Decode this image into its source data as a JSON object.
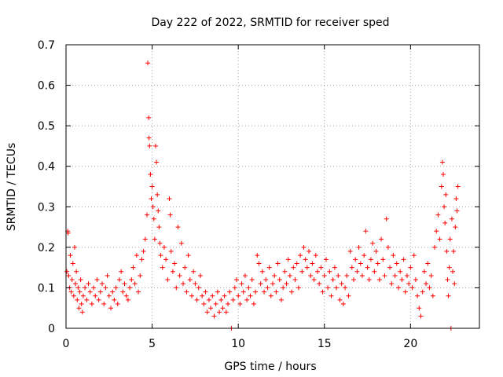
{
  "chart_data": {
    "type": "scatter",
    "title": "Day 222 of 2022, SRMTID for receiver sped",
    "xlabel": "GPS time / hours",
    "ylabel": "SRMTID / TECUs",
    "xlim": [
      0,
      24
    ],
    "ylim": [
      0,
      0.7
    ],
    "x_ticks": [
      0,
      5,
      10,
      15,
      20
    ],
    "x_tick_labels": [
      "0",
      "5",
      "10",
      "15",
      "20"
    ],
    "y_ticks": [
      0,
      0.1,
      0.2,
      0.3,
      0.4,
      0.5,
      0.6,
      0.7
    ],
    "y_tick_labels": [
      "0",
      "0.1",
      "0.2",
      "0.3",
      "0.4",
      "0.5",
      "0.6",
      "0.7"
    ],
    "grid": true,
    "marker": "+",
    "series": [
      {
        "name": "SRMTID",
        "color": "#ff0000",
        "points": [
          [
            0.05,
            0.14
          ],
          [
            0.1,
            0.24
          ],
          [
            0.12,
            0.235
          ],
          [
            0.15,
            0.13
          ],
          [
            0.2,
            0.1
          ],
          [
            0.25,
            0.18
          ],
          [
            0.3,
            0.09
          ],
          [
            0.35,
            0.12
          ],
          [
            0.4,
            0.16
          ],
          [
            0.45,
            0.08
          ],
          [
            0.5,
            0.2
          ],
          [
            0.55,
            0.11
          ],
          [
            0.6,
            0.14
          ],
          [
            0.65,
            0.07
          ],
          [
            0.7,
            0.1
          ],
          [
            0.75,
            0.05
          ],
          [
            0.8,
            0.09
          ],
          [
            0.85,
            0.12
          ],
          [
            0.9,
            0.06
          ],
          [
            0.95,
            0.04
          ],
          [
            1.0,
            0.08
          ],
          [
            1.1,
            0.1
          ],
          [
            1.2,
            0.07
          ],
          [
            1.3,
            0.11
          ],
          [
            1.4,
            0.09
          ],
          [
            1.5,
            0.06
          ],
          [
            1.6,
            0.1
          ],
          [
            1.7,
            0.08
          ],
          [
            1.8,
            0.12
          ],
          [
            1.9,
            0.07
          ],
          [
            2.0,
            0.09
          ],
          [
            2.1,
            0.11
          ],
          [
            2.2,
            0.06
          ],
          [
            2.3,
            0.1
          ],
          [
            2.4,
            0.13
          ],
          [
            2.5,
            0.08
          ],
          [
            2.6,
            0.05
          ],
          [
            2.7,
            0.09
          ],
          [
            2.8,
            0.07
          ],
          [
            2.9,
            0.1
          ],
          [
            3.0,
            0.06
          ],
          [
            3.1,
            0.12
          ],
          [
            3.2,
            0.14
          ],
          [
            3.3,
            0.09
          ],
          [
            3.4,
            0.11
          ],
          [
            3.5,
            0.08
          ],
          [
            3.6,
            0.07
          ],
          [
            3.7,
            0.1
          ],
          [
            3.8,
            0.12
          ],
          [
            3.9,
            0.15
          ],
          [
            4.0,
            0.11
          ],
          [
            4.1,
            0.18
          ],
          [
            4.2,
            0.09
          ],
          [
            4.3,
            0.13
          ],
          [
            4.4,
            0.17
          ],
          [
            4.5,
            0.19
          ],
          [
            4.6,
            0.22
          ],
          [
            4.7,
            0.28
          ],
          [
            4.75,
            0.655
          ],
          [
            4.8,
            0.52
          ],
          [
            4.82,
            0.47
          ],
          [
            4.85,
            0.45
          ],
          [
            4.9,
            0.38
          ],
          [
            4.95,
            0.32
          ],
          [
            5.0,
            0.35
          ],
          [
            5.05,
            0.3
          ],
          [
            5.1,
            0.27
          ],
          [
            5.15,
            0.22
          ],
          [
            5.2,
            0.45
          ],
          [
            5.25,
            0.41
          ],
          [
            5.3,
            0.33
          ],
          [
            5.35,
            0.29
          ],
          [
            5.4,
            0.25
          ],
          [
            5.45,
            0.21
          ],
          [
            5.5,
            0.18
          ],
          [
            5.6,
            0.15
          ],
          [
            5.7,
            0.2
          ],
          [
            5.8,
            0.17
          ],
          [
            5.9,
            0.12
          ],
          [
            6.0,
            0.32
          ],
          [
            6.05,
            0.28
          ],
          [
            6.1,
            0.19
          ],
          [
            6.2,
            0.14
          ],
          [
            6.3,
            0.16
          ],
          [
            6.4,
            0.1
          ],
          [
            6.5,
            0.25
          ],
          [
            6.6,
            0.13
          ],
          [
            6.7,
            0.21
          ],
          [
            6.8,
            0.11
          ],
          [
            6.9,
            0.15
          ],
          [
            7.0,
            0.09
          ],
          [
            7.1,
            0.18
          ],
          [
            7.2,
            0.12
          ],
          [
            7.3,
            0.08
          ],
          [
            7.4,
            0.14
          ],
          [
            7.5,
            0.11
          ],
          [
            7.6,
            0.07
          ],
          [
            7.7,
            0.1
          ],
          [
            7.8,
            0.13
          ],
          [
            7.9,
            0.08
          ],
          [
            8.0,
            0.06
          ],
          [
            8.1,
            0.09
          ],
          [
            8.2,
            0.04
          ],
          [
            8.3,
            0.07
          ],
          [
            8.4,
            0.05
          ],
          [
            8.5,
            0.08
          ],
          [
            8.6,
            0.03
          ],
          [
            8.7,
            0.06
          ],
          [
            8.8,
            0.09
          ],
          [
            8.9,
            0.04
          ],
          [
            9.0,
            0.07
          ],
          [
            9.1,
            0.05
          ],
          [
            9.2,
            0.08
          ],
          [
            9.3,
            0.04
          ],
          [
            9.4,
            0.06
          ],
          [
            9.5,
            0.09
          ],
          [
            9.6,
            0.0
          ],
          [
            9.7,
            0.07
          ],
          [
            9.8,
            0.1
          ],
          [
            9.9,
            0.12
          ],
          [
            10.0,
            0.08
          ],
          [
            10.1,
            0.06
          ],
          [
            10.2,
            0.11
          ],
          [
            10.3,
            0.09
          ],
          [
            10.4,
            0.13
          ],
          [
            10.5,
            0.07
          ],
          [
            10.6,
            0.1
          ],
          [
            10.7,
            0.08
          ],
          [
            10.8,
            0.12
          ],
          [
            10.9,
            0.06
          ],
          [
            11.0,
            0.09
          ],
          [
            11.1,
            0.18
          ],
          [
            11.2,
            0.16
          ],
          [
            11.3,
            0.11
          ],
          [
            11.4,
            0.14
          ],
          [
            11.5,
            0.09
          ],
          [
            11.6,
            0.12
          ],
          [
            11.7,
            0.1
          ],
          [
            11.8,
            0.15
          ],
          [
            11.9,
            0.08
          ],
          [
            12.0,
            0.11
          ],
          [
            12.1,
            0.13
          ],
          [
            12.2,
            0.09
          ],
          [
            12.3,
            0.16
          ],
          [
            12.4,
            0.12
          ],
          [
            12.5,
            0.07
          ],
          [
            12.6,
            0.1
          ],
          [
            12.7,
            0.14
          ],
          [
            12.8,
            0.11
          ],
          [
            12.9,
            0.17
          ],
          [
            13.0,
            0.13
          ],
          [
            13.1,
            0.09
          ],
          [
            13.2,
            0.15
          ],
          [
            13.3,
            0.12
          ],
          [
            13.4,
            0.16
          ],
          [
            13.5,
            0.1
          ],
          [
            13.6,
            0.18
          ],
          [
            13.7,
            0.14
          ],
          [
            13.8,
            0.2
          ],
          [
            13.9,
            0.17
          ],
          [
            14.0,
            0.15
          ],
          [
            14.1,
            0.19
          ],
          [
            14.2,
            0.13
          ],
          [
            14.3,
            0.16
          ],
          [
            14.4,
            0.12
          ],
          [
            14.5,
            0.18
          ],
          [
            14.6,
            0.14
          ],
          [
            14.7,
            0.11
          ],
          [
            14.8,
            0.15
          ],
          [
            14.9,
            0.09
          ],
          [
            15.0,
            0.13
          ],
          [
            15.1,
            0.17
          ],
          [
            15.2,
            0.1
          ],
          [
            15.3,
            0.14
          ],
          [
            15.4,
            0.08
          ],
          [
            15.5,
            0.12
          ],
          [
            15.6,
            0.15
          ],
          [
            15.7,
            0.1
          ],
          [
            15.8,
            0.13
          ],
          [
            15.9,
            0.07
          ],
          [
            16.0,
            0.11
          ],
          [
            16.1,
            0.06
          ],
          [
            16.2,
            0.1
          ],
          [
            16.3,
            0.13
          ],
          [
            16.4,
            0.08
          ],
          [
            16.5,
            0.19
          ],
          [
            16.6,
            0.15
          ],
          [
            16.7,
            0.12
          ],
          [
            16.8,
            0.17
          ],
          [
            16.9,
            0.14
          ],
          [
            17.0,
            0.2
          ],
          [
            17.1,
            0.16
          ],
          [
            17.2,
            0.13
          ],
          [
            17.3,
            0.18
          ],
          [
            17.4,
            0.24
          ],
          [
            17.5,
            0.15
          ],
          [
            17.6,
            0.12
          ],
          [
            17.7,
            0.17
          ],
          [
            17.8,
            0.21
          ],
          [
            17.9,
            0.14
          ],
          [
            18.0,
            0.19
          ],
          [
            18.1,
            0.16
          ],
          [
            18.2,
            0.12
          ],
          [
            18.3,
            0.22
          ],
          [
            18.4,
            0.17
          ],
          [
            18.5,
            0.13
          ],
          [
            18.6,
            0.27
          ],
          [
            18.7,
            0.2
          ],
          [
            18.8,
            0.15
          ],
          [
            18.9,
            0.11
          ],
          [
            19.0,
            0.18
          ],
          [
            19.1,
            0.13
          ],
          [
            19.2,
            0.16
          ],
          [
            19.3,
            0.1
          ],
          [
            19.4,
            0.14
          ],
          [
            19.5,
            0.12
          ],
          [
            19.6,
            0.17
          ],
          [
            19.7,
            0.09
          ],
          [
            19.8,
            0.13
          ],
          [
            19.9,
            0.11
          ],
          [
            20.0,
            0.15
          ],
          [
            20.1,
            0.1
          ],
          [
            20.2,
            0.18
          ],
          [
            20.3,
            0.12
          ],
          [
            20.4,
            0.08
          ],
          [
            20.5,
            0.05
          ],
          [
            20.6,
            0.03
          ],
          [
            20.7,
            0.09
          ],
          [
            20.8,
            0.14
          ],
          [
            20.9,
            0.11
          ],
          [
            21.0,
            0.16
          ],
          [
            21.1,
            0.1
          ],
          [
            21.2,
            0.13
          ],
          [
            21.3,
            0.08
          ],
          [
            21.4,
            0.2
          ],
          [
            21.5,
            0.24
          ],
          [
            21.6,
            0.28
          ],
          [
            21.7,
            0.22
          ],
          [
            21.8,
            0.35
          ],
          [
            21.85,
            0.41
          ],
          [
            21.9,
            0.38
          ],
          [
            21.95,
            0.3
          ],
          [
            22.0,
            0.26
          ],
          [
            22.05,
            0.33
          ],
          [
            22.1,
            0.19
          ],
          [
            22.15,
            0.12
          ],
          [
            22.2,
            0.08
          ],
          [
            22.25,
            0.15
          ],
          [
            22.3,
            0.22
          ],
          [
            22.35,
            0.0
          ],
          [
            22.4,
            0.27
          ],
          [
            22.45,
            0.14
          ],
          [
            22.5,
            0.19
          ],
          [
            22.55,
            0.11
          ],
          [
            22.6,
            0.25
          ],
          [
            22.65,
            0.32
          ],
          [
            22.7,
            0.29
          ],
          [
            22.75,
            0.35
          ]
        ]
      }
    ]
  }
}
